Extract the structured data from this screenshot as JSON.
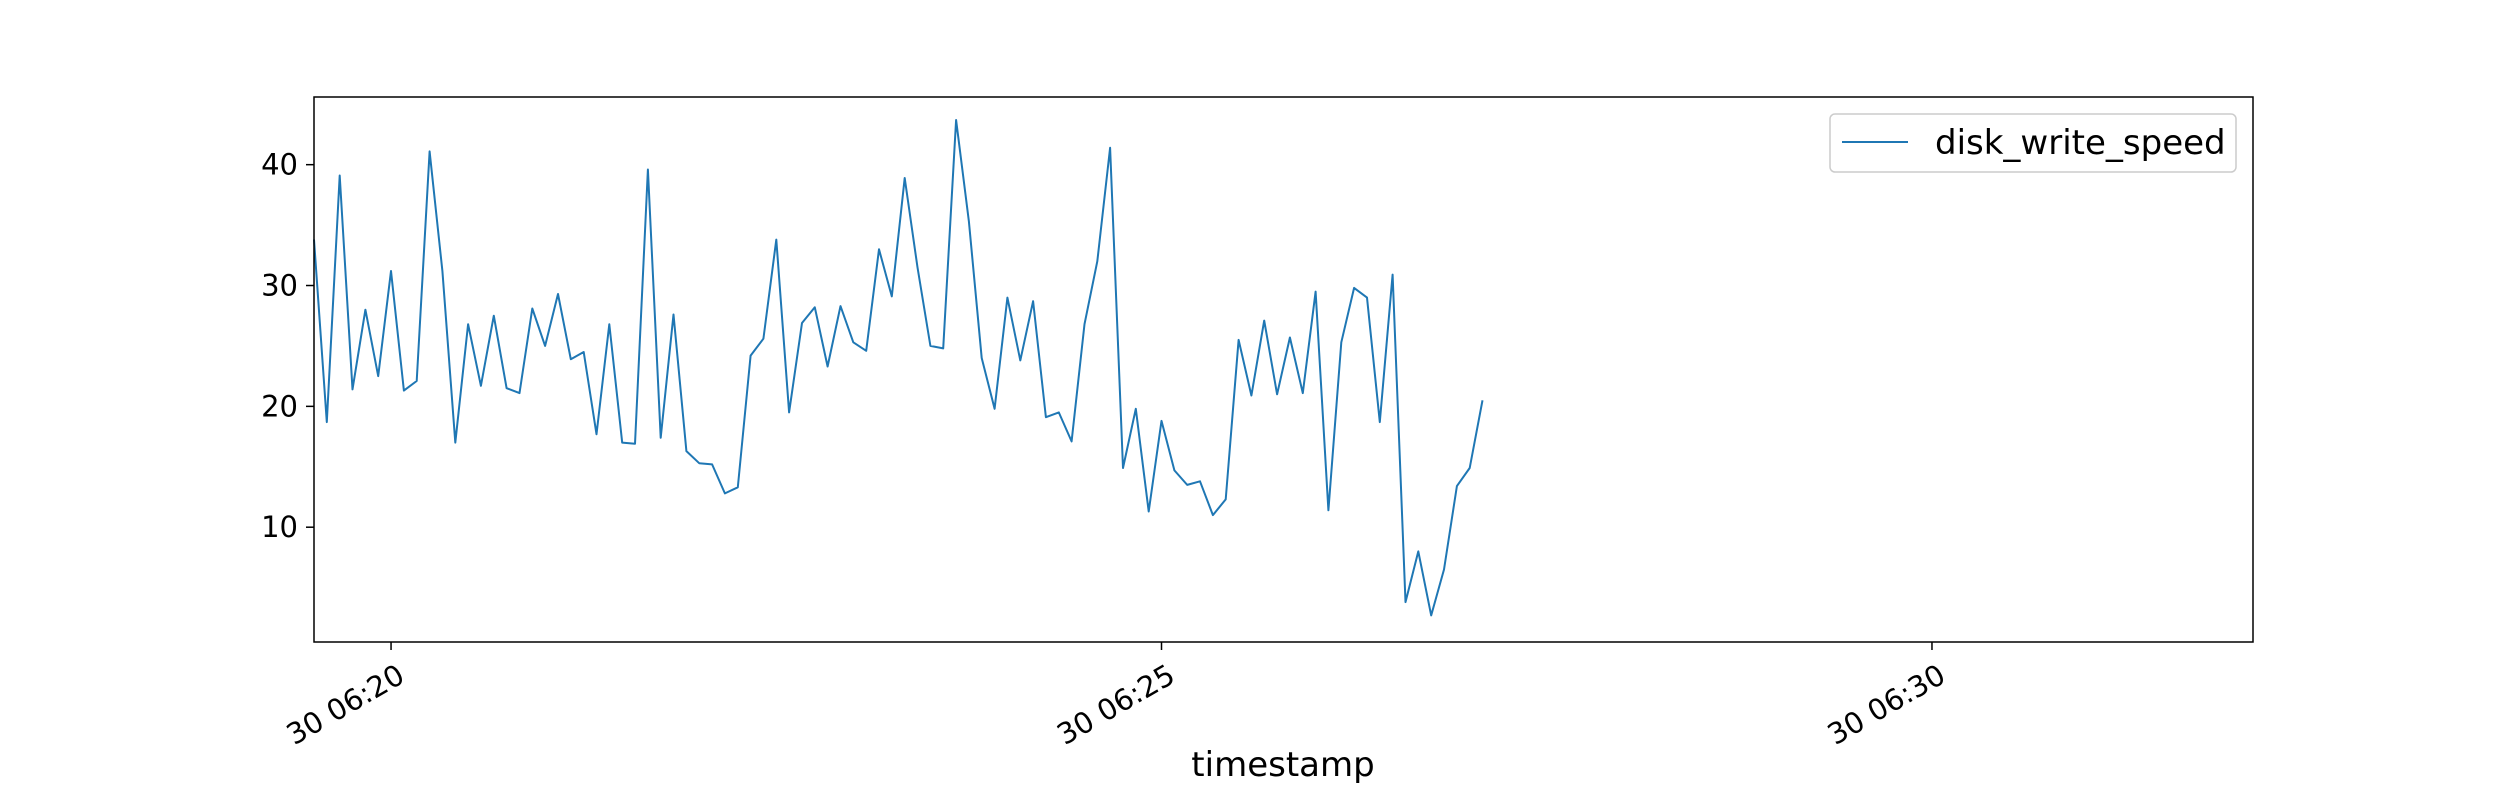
{
  "chart_data": {
    "type": "line",
    "title": "",
    "xlabel": "timestamp",
    "ylabel": "",
    "x_start": "30 06:19:30",
    "x_step_seconds": 5,
    "xlim": [
      "30 06:19:30",
      "30 06:32:05"
    ],
    "ylim": [
      0.5,
      45.6
    ],
    "yticks": [
      10,
      20,
      30,
      40
    ],
    "xticks": [
      {
        "label": "30 06:20",
        "time": "30 06:20:00"
      },
      {
        "label": "30 06:25",
        "time": "30 06:25:00"
      },
      {
        "label": "30 06:30",
        "time": "30 06:30:00"
      }
    ],
    "legend": {
      "location": "top-right"
    },
    "grid": false,
    "series": [
      {
        "name": "disk_write_speed",
        "color": "#1f77b4",
        "values": [
          33.8,
          18.7,
          39.1,
          21.4,
          28.0,
          22.5,
          31.2,
          21.3,
          22.1,
          41.1,
          31.2,
          17.0,
          26.8,
          21.7,
          27.5,
          21.5,
          21.1,
          28.1,
          25.0,
          29.3,
          23.9,
          24.5,
          17.7,
          26.8,
          17.0,
          16.9,
          39.6,
          17.4,
          27.6,
          16.3,
          15.3,
          15.2,
          12.8,
          13.3,
          24.2,
          25.6,
          33.8,
          19.5,
          26.9,
          28.2,
          23.3,
          28.3,
          25.3,
          24.6,
          33.0,
          29.1,
          38.9,
          31.5,
          25.0,
          24.8,
          43.7,
          35.3,
          24.0,
          19.8,
          29.0,
          23.8,
          28.7,
          19.1,
          19.5,
          17.1,
          26.8,
          32.0,
          41.4,
          14.9,
          19.8,
          11.3,
          18.8,
          14.7,
          13.5,
          13.8,
          11.0,
          12.3,
          25.5,
          20.9,
          27.1,
          21.0,
          25.7,
          21.1,
          29.5,
          11.4,
          25.3,
          29.8,
          29.0,
          18.7,
          30.9,
          3.8,
          8.0,
          2.7,
          6.5,
          13.4,
          14.9,
          20.5
        ]
      }
    ]
  }
}
